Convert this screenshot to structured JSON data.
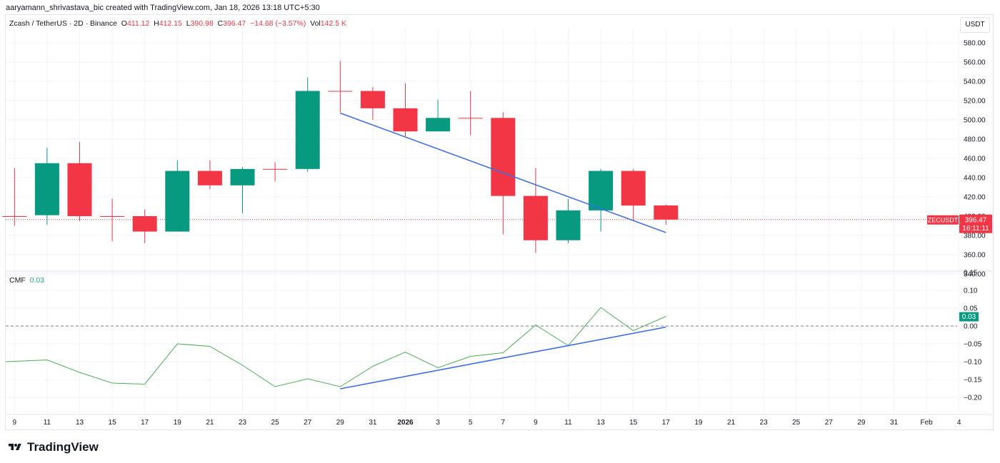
{
  "credit": "aaryamann_shrivastava_bic created with TradingView.com, Jan 18, 2026 13:18 UTC+5:30",
  "legend": {
    "symbol": "Zcash / TetherUS · 2D · Binance",
    "open_label": "O",
    "open": "411.12",
    "high_label": "H",
    "high": "412.15",
    "low_label": "L",
    "low": "390.98",
    "close_label": "C",
    "close": "396.47",
    "change": "−14.68 (−3.57%)",
    "vol_label": "Vol",
    "vol": "142.5 K"
  },
  "unit_label": "USDT",
  "price_tag": {
    "symbol": "ZECUSDT",
    "price": "396.47",
    "countdown": "16:11:11"
  },
  "cmf_legend": {
    "name": "CMF",
    "value": "0.03"
  },
  "cmf_tag": "0.03",
  "brand": "TradingView",
  "colors": {
    "up": "#089981",
    "down": "#f23645",
    "trend": "#3a6ee8",
    "cmf": "#4caf50",
    "grid": "#f0f3fa"
  },
  "chart_data": [
    {
      "type": "candlestick",
      "title": "",
      "y_ticks": [
        "580.00",
        "560.00",
        "540.00",
        "520.00",
        "500.00",
        "480.00",
        "460.00",
        "440.00",
        "420.00",
        "400.00",
        "380.00",
        "360.00",
        "340.00"
      ],
      "ylim": [
        340,
        590
      ],
      "x_ticks": [
        {
          "label": "9",
          "i": 0
        },
        {
          "label": "11",
          "i": 1
        },
        {
          "label": "13",
          "i": 2
        },
        {
          "label": "15",
          "i": 3
        },
        {
          "label": "17",
          "i": 4
        },
        {
          "label": "19",
          "i": 5
        },
        {
          "label": "21",
          "i": 6
        },
        {
          "label": "23",
          "i": 7
        },
        {
          "label": "25",
          "i": 8
        },
        {
          "label": "27",
          "i": 9
        },
        {
          "label": "29",
          "i": 10
        },
        {
          "label": "31",
          "i": 11
        },
        {
          "label": "2026",
          "i": 12
        },
        {
          "label": "3",
          "i": 13
        },
        {
          "label": "5",
          "i": 14
        },
        {
          "label": "7",
          "i": 15
        },
        {
          "label": "9",
          "i": 16
        },
        {
          "label": "11",
          "i": 17
        },
        {
          "label": "13",
          "i": 18
        },
        {
          "label": "15",
          "i": 19
        },
        {
          "label": "17",
          "i": 20
        },
        {
          "label": "19",
          "i": 21
        },
        {
          "label": "21",
          "i": 22
        },
        {
          "label": "23",
          "i": 23
        },
        {
          "label": "25",
          "i": 24
        },
        {
          "label": "27",
          "i": 25
        },
        {
          "label": "29",
          "i": 26
        },
        {
          "label": "31",
          "i": 27
        },
        {
          "label": "Feb",
          "i": 28
        },
        {
          "label": "4",
          "i": 29
        }
      ],
      "candles": [
        {
          "date": "Dec 9",
          "o": 400,
          "h": 450,
          "l": 390,
          "c": 400
        },
        {
          "date": "Dec 11",
          "o": 401,
          "h": 471,
          "l": 391,
          "c": 455
        },
        {
          "date": "Dec 13",
          "o": 455,
          "h": 477,
          "l": 395,
          "c": 400
        },
        {
          "date": "Dec 15",
          "o": 400,
          "h": 418,
          "l": 374,
          "c": 400
        },
        {
          "date": "Dec 17",
          "o": 400,
          "h": 407,
          "l": 372,
          "c": 384
        },
        {
          "date": "Dec 19",
          "o": 384,
          "h": 458,
          "l": 384,
          "c": 447
        },
        {
          "date": "Dec 21",
          "o": 447,
          "h": 458,
          "l": 428,
          "c": 432
        },
        {
          "date": "Dec 23",
          "o": 432,
          "h": 451,
          "l": 403,
          "c": 449
        },
        {
          "date": "Dec 25",
          "o": 449,
          "h": 456,
          "l": 436,
          "c": 449
        },
        {
          "date": "Dec 27",
          "o": 449,
          "h": 544,
          "l": 446,
          "c": 530
        },
        {
          "date": "Dec 29",
          "o": 530,
          "h": 561,
          "l": 508,
          "c": 530
        },
        {
          "date": "Dec 31",
          "o": 530,
          "h": 534,
          "l": 500,
          "c": 512
        },
        {
          "date": "Jan 2",
          "o": 512,
          "h": 538,
          "l": 483,
          "c": 488
        },
        {
          "date": "Jan 3",
          "o": 488,
          "h": 521,
          "l": 488,
          "c": 502
        },
        {
          "date": "Jan 5",
          "o": 502,
          "h": 530,
          "l": 484,
          "c": 502
        },
        {
          "date": "Jan 7",
          "o": 502,
          "h": 508,
          "l": 381,
          "c": 421
        },
        {
          "date": "Jan 9",
          "o": 421,
          "h": 450,
          "l": 362,
          "c": 375
        },
        {
          "date": "Jan 11",
          "o": 375,
          "h": 418,
          "l": 372,
          "c": 406
        },
        {
          "date": "Jan 13",
          "o": 406,
          "h": 449,
          "l": 384,
          "c": 447
        },
        {
          "date": "Jan 15",
          "o": 447,
          "h": 449,
          "l": 396,
          "c": 411
        },
        {
          "date": "Jan 17",
          "o": 411.12,
          "h": 412.15,
          "l": 390.98,
          "c": 396.47
        }
      ],
      "current_price": 396.47,
      "trendline": [
        {
          "i": 10,
          "y": 507
        },
        {
          "i": 20,
          "y": 383
        }
      ]
    },
    {
      "type": "line",
      "title": "",
      "y_ticks": [
        "0.15",
        "0.10",
        "0.05",
        "0.00",
        "−0.05",
        "−0.10",
        "−0.15",
        "−0.20"
      ],
      "ylim": [
        -0.25,
        0.15
      ],
      "series": [
        {
          "values": [
            -0.1,
            -0.095,
            -0.13,
            -0.16,
            -0.163,
            -0.05,
            -0.057,
            -0.11,
            -0.17,
            -0.148,
            -0.17,
            -0.113,
            -0.073,
            -0.117,
            -0.085,
            -0.075,
            0.003,
            -0.055,
            0.052,
            -0.013,
            0.027
          ]
        }
      ],
      "zero_line": 0,
      "trendline": [
        {
          "i": 10,
          "y": -0.176
        },
        {
          "i": 20,
          "y": -0.003
        }
      ]
    }
  ]
}
